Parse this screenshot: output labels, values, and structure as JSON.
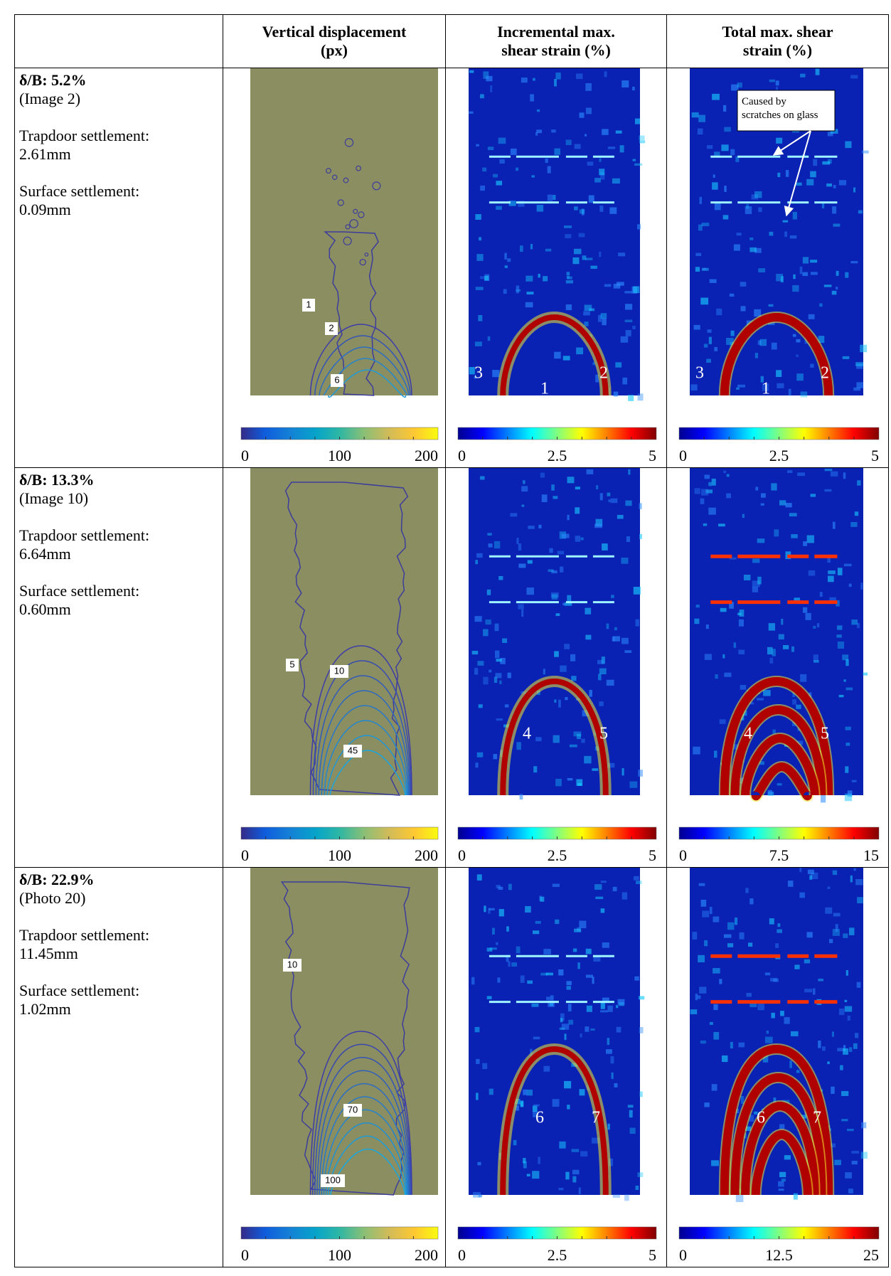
{
  "header": {
    "columns": [
      [
        "Vertical displacement",
        "(px)"
      ],
      [
        "Incremental max.",
        "shear strain (%)"
      ],
      [
        "Total max. shear",
        "strain (%)"
      ]
    ]
  },
  "rows": [
    {
      "case": "δ/B: 5.2%",
      "source": "(Image 2)",
      "trapdoor": [
        "Trapdoor settlement:",
        "2.61mm"
      ],
      "surface": [
        "Surface settlement:",
        "0.09mm"
      ],
      "panels": [
        {
          "labels": [
            "1",
            "2",
            "6"
          ],
          "colorbar": [
            "0",
            "100",
            "200"
          ]
        },
        {
          "labels": [
            "3",
            "2",
            "1"
          ],
          "colorbar": [
            "0",
            "2.5",
            "5"
          ]
        },
        {
          "labels": [
            "3",
            "2",
            "1"
          ],
          "colorbar": [
            "0",
            "2.5",
            "5"
          ],
          "annotation": [
            "Caused by",
            "scratches on glass"
          ]
        }
      ]
    },
    {
      "case": "δ/B: 13.3%",
      "source": "(Image 10)",
      "trapdoor": [
        "Trapdoor settlement:",
        "6.64mm"
      ],
      "surface": [
        "Surface settlement:",
        "0.60mm"
      ],
      "panels": [
        {
          "labels": [
            "5",
            "10",
            "45"
          ],
          "colorbar": [
            "0",
            "100",
            "200"
          ]
        },
        {
          "labels": [
            "4",
            "5"
          ],
          "colorbar": [
            "0",
            "2.5",
            "5"
          ]
        },
        {
          "labels": [
            "4",
            "5"
          ],
          "colorbar": [
            "0",
            "7.5",
            "15"
          ]
        }
      ]
    },
    {
      "case": "δ/B: 22.9%",
      "source": "(Photo 20)",
      "trapdoor": [
        "Trapdoor settlement:",
        "11.45mm"
      ],
      "surface": [
        "Surface settlement:",
        "1.02mm"
      ],
      "panels": [
        {
          "labels": [
            "10",
            "70",
            "100"
          ],
          "colorbar": [
            "0",
            "100",
            "200"
          ]
        },
        {
          "labels": [
            "6",
            "7"
          ],
          "colorbar": [
            "0",
            "2.5",
            "5"
          ]
        },
        {
          "labels": [
            "6",
            "7"
          ],
          "colorbar": [
            "0",
            "12.5",
            "25"
          ]
        }
      ]
    }
  ]
}
